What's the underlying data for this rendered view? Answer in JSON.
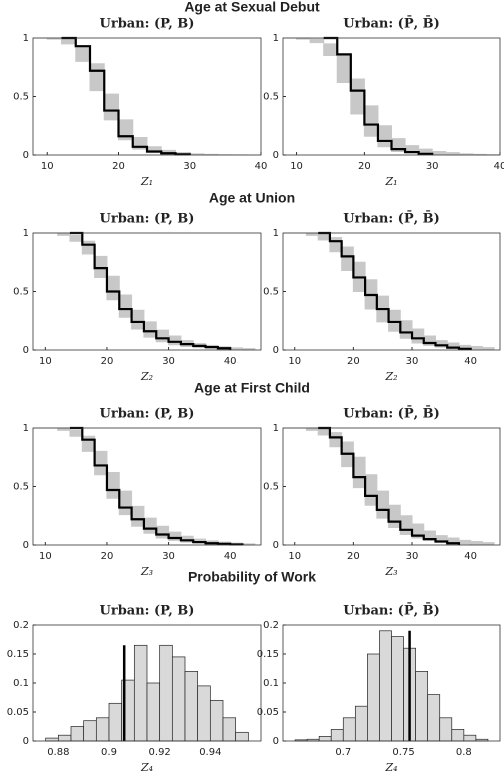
{
  "chart_data": [
    {
      "type": "step",
      "section_title": "Age at Sexual Debut",
      "title": "Urban: (P, B)",
      "x_label": "Z₁",
      "x": [
        8,
        10,
        12,
        14,
        16,
        18,
        20,
        22,
        24,
        26,
        28,
        30,
        32,
        34,
        36,
        38,
        40
      ],
      "xlim": [
        8,
        40
      ],
      "xticks": [
        10,
        20,
        30,
        40
      ],
      "ylim": [
        0,
        1
      ],
      "yticks": [
        0,
        0.5,
        1
      ],
      "band": {
        "color": "#c8c8c8",
        "lower": [
          1,
          0.99,
          0.95,
          0.8,
          0.55,
          0.3,
          0.13,
          0.05,
          0.02,
          0.01,
          0.005,
          0.002,
          0,
          0,
          0,
          0,
          0
        ],
        "upper": [
          1,
          1,
          0.99,
          0.92,
          0.78,
          0.52,
          0.3,
          0.15,
          0.07,
          0.04,
          0.02,
          0.01,
          0.005,
          0.002,
          0.001,
          0,
          0
        ]
      },
      "series": [
        {
          "color": "#000000",
          "values": [
            null,
            null,
            1,
            0.93,
            0.72,
            0.38,
            0.16,
            0.07,
            0.03,
            0.015,
            0.006,
            0,
            null,
            null,
            null,
            null,
            null
          ]
        }
      ]
    },
    {
      "type": "step",
      "title": "Urban: (P̄, B̄)",
      "x_label": "Z₁",
      "x": [
        8,
        10,
        12,
        14,
        16,
        18,
        20,
        22,
        24,
        26,
        28,
        30,
        32,
        34,
        36,
        38,
        40
      ],
      "xlim": [
        8,
        40
      ],
      "xticks": [
        10,
        20,
        30,
        40
      ],
      "ylim": [
        0,
        1
      ],
      "yticks": [
        0,
        0.5,
        1
      ],
      "band": {
        "color": "#c8c8c8",
        "lower": [
          1,
          0.99,
          0.96,
          0.85,
          0.62,
          0.35,
          0.16,
          0.07,
          0.03,
          0.015,
          0.007,
          0.003,
          0.001,
          0,
          0,
          0,
          0
        ],
        "upper": [
          1,
          1,
          0.99,
          0.95,
          0.85,
          0.65,
          0.42,
          0.25,
          0.14,
          0.08,
          0.05,
          0.03,
          0.02,
          0.01,
          0.005,
          0.002,
          0.001
        ]
      },
      "series": [
        {
          "color": "#000000",
          "values": [
            null,
            null,
            null,
            1,
            0.86,
            0.55,
            0.26,
            0.12,
            0.05,
            0.025,
            0.01,
            0,
            null,
            null,
            null,
            null,
            null
          ]
        }
      ]
    },
    {
      "type": "step",
      "section_title": "Age at Union",
      "title": "Urban: (P, B)",
      "x_label": "Z₂",
      "x": [
        8,
        10,
        12,
        14,
        16,
        18,
        20,
        22,
        24,
        26,
        28,
        30,
        32,
        34,
        36,
        38,
        40,
        42,
        44
      ],
      "xlim": [
        8,
        45
      ],
      "xticks": [
        10,
        20,
        30,
        40
      ],
      "ylim": [
        0,
        1
      ],
      "yticks": [
        0,
        0.5,
        1
      ],
      "band": {
        "color": "#c8c8c8",
        "lower": [
          1,
          1,
          0.98,
          0.93,
          0.82,
          0.62,
          0.43,
          0.28,
          0.18,
          0.11,
          0.07,
          0.045,
          0.03,
          0.02,
          0.012,
          0.007,
          0.004,
          0.002,
          0.001
        ],
        "upper": [
          1,
          1,
          1,
          0.98,
          0.93,
          0.8,
          0.63,
          0.47,
          0.34,
          0.24,
          0.17,
          0.12,
          0.08,
          0.055,
          0.04,
          0.028,
          0.018,
          0.012,
          0.008
        ]
      },
      "series": [
        {
          "color": "#000000",
          "values": [
            null,
            null,
            null,
            1,
            0.9,
            0.7,
            0.5,
            0.35,
            0.24,
            0.16,
            0.1,
            0.07,
            0.05,
            0.035,
            0.025,
            0.015,
            0,
            null,
            null
          ]
        }
      ]
    },
    {
      "type": "step",
      "title": "Urban: (P̄, B̄)",
      "x_label": "Z₂",
      "x": [
        8,
        10,
        12,
        14,
        16,
        18,
        20,
        22,
        24,
        26,
        28,
        30,
        32,
        34,
        36,
        38,
        40,
        42,
        44
      ],
      "xlim": [
        8,
        45
      ],
      "xticks": [
        10,
        20,
        30,
        40
      ],
      "ylim": [
        0,
        1
      ],
      "yticks": [
        0,
        0.5,
        1
      ],
      "band": {
        "color": "#c8c8c8",
        "lower": [
          1,
          1,
          0.98,
          0.94,
          0.84,
          0.68,
          0.5,
          0.35,
          0.24,
          0.16,
          0.1,
          0.06,
          0.04,
          0.025,
          0.015,
          0.01,
          0.006,
          0.004,
          0.002
        ],
        "upper": [
          1,
          1,
          1,
          0.99,
          0.96,
          0.88,
          0.75,
          0.6,
          0.46,
          0.34,
          0.25,
          0.18,
          0.12,
          0.08,
          0.06,
          0.04,
          0.03,
          0.02,
          0.015
        ]
      },
      "series": [
        {
          "color": "#000000",
          "values": [
            null,
            null,
            null,
            1,
            0.93,
            0.8,
            0.62,
            0.47,
            0.35,
            0.24,
            0.15,
            0.1,
            0.06,
            0.04,
            0.02,
            0.01,
            0,
            null,
            null
          ]
        }
      ]
    },
    {
      "type": "step",
      "section_title": "Age at First Child",
      "title": "Urban: (P, B)",
      "x_label": "Z₃",
      "x": [
        8,
        10,
        12,
        14,
        16,
        18,
        20,
        22,
        24,
        26,
        28,
        30,
        32,
        34,
        36,
        38,
        40,
        42,
        44
      ],
      "xlim": [
        8,
        45
      ],
      "xticks": [
        10,
        20,
        30,
        40
      ],
      "ylim": [
        0,
        1
      ],
      "yticks": [
        0,
        0.5,
        1
      ],
      "band": {
        "color": "#c8c8c8",
        "lower": [
          1,
          1,
          0.98,
          0.93,
          0.8,
          0.6,
          0.4,
          0.26,
          0.16,
          0.1,
          0.06,
          0.04,
          0.025,
          0.015,
          0.01,
          0.006,
          0.003,
          0.002,
          0.001
        ],
        "upper": [
          1,
          1,
          1,
          0.98,
          0.93,
          0.8,
          0.62,
          0.46,
          0.33,
          0.23,
          0.16,
          0.11,
          0.075,
          0.05,
          0.035,
          0.025,
          0.016,
          0.01,
          0.006
        ]
      },
      "series": [
        {
          "color": "#000000",
          "values": [
            null,
            null,
            null,
            1,
            0.9,
            0.68,
            0.47,
            0.32,
            0.22,
            0.14,
            0.09,
            0.06,
            0.04,
            0.025,
            0.015,
            0.01,
            0.005,
            0,
            null
          ]
        }
      ]
    },
    {
      "type": "step",
      "title": "Urban: (P̄, B̄)",
      "x_label": "Z₃",
      "x": [
        8,
        10,
        12,
        14,
        16,
        18,
        20,
        22,
        24,
        26,
        28,
        30,
        32,
        34,
        36,
        38,
        40,
        42,
        44
      ],
      "xlim": [
        8,
        45
      ],
      "xticks": [
        10,
        20,
        30,
        40
      ],
      "ylim": [
        0,
        1
      ],
      "yticks": [
        0,
        0.5,
        1
      ],
      "band": {
        "color": "#c8c8c8",
        "lower": [
          1,
          1,
          0.98,
          0.94,
          0.84,
          0.67,
          0.49,
          0.34,
          0.23,
          0.15,
          0.09,
          0.06,
          0.04,
          0.025,
          0.015,
          0.01,
          0.006,
          0.004,
          0.002
        ],
        "upper": [
          1,
          1,
          1,
          0.99,
          0.96,
          0.88,
          0.75,
          0.6,
          0.46,
          0.34,
          0.25,
          0.18,
          0.12,
          0.08,
          0.06,
          0.04,
          0.03,
          0.02,
          0.015
        ]
      },
      "series": [
        {
          "color": "#000000",
          "values": [
            null,
            null,
            null,
            1,
            0.92,
            0.78,
            0.58,
            0.42,
            0.3,
            0.2,
            0.13,
            0.08,
            0.05,
            0.03,
            0.015,
            0,
            null,
            null,
            null
          ]
        }
      ]
    },
    {
      "type": "histogram",
      "section_title": "Probability of Work",
      "title": "Urban: (P, B)",
      "x_label": "Z₄",
      "bins": [
        0.875,
        0.88,
        0.885,
        0.89,
        0.895,
        0.9,
        0.905,
        0.91,
        0.915,
        0.92,
        0.925,
        0.93,
        0.935,
        0.94,
        0.945,
        0.95,
        0.955
      ],
      "counts": [
        0.005,
        0.01,
        0.025,
        0.035,
        0.04,
        0.065,
        0.105,
        0.165,
        0.1,
        0.165,
        0.145,
        0.12,
        0.095,
        0.07,
        0.04,
        0.015
      ],
      "color": "#d9d9d9",
      "xlim": [
        0.87,
        0.96
      ],
      "xticks": [
        0.88,
        0.9,
        0.92,
        0.94
      ],
      "ylim": [
        0,
        0.2
      ],
      "yticks": [
        0,
        0.05,
        0.1,
        0.15,
        0.2
      ],
      "reference_line": {
        "x": 0.906,
        "height": 0.165,
        "color": "#000000"
      }
    },
    {
      "type": "histogram",
      "title": "Urban: (P̄, B̄)",
      "x_label": "Z₄",
      "bins": [
        0.66,
        0.67,
        0.68,
        0.69,
        0.7,
        0.71,
        0.72,
        0.73,
        0.74,
        0.75,
        0.76,
        0.77,
        0.78,
        0.79,
        0.8,
        0.81,
        0.82
      ],
      "counts": [
        0.002,
        0.003,
        0.008,
        0.02,
        0.04,
        0.06,
        0.15,
        0.19,
        0.18,
        0.16,
        0.12,
        0.08,
        0.04,
        0.02,
        0.01,
        0.003
      ],
      "color": "#d9d9d9",
      "xlim": [
        0.65,
        0.83
      ],
      "xticks": [
        0.7,
        0.75,
        0.8
      ],
      "ylim": [
        0,
        0.2
      ],
      "yticks": [
        0,
        0.05,
        0.1,
        0.15,
        0.2
      ],
      "reference_line": {
        "x": 0.755,
        "height": 0.19,
        "color": "#000000"
      }
    }
  ]
}
